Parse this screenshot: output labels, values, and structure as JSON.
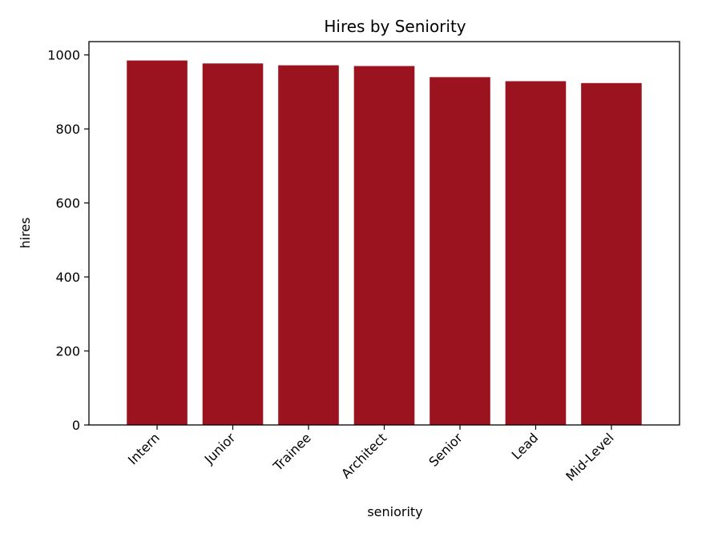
{
  "chart_data": {
    "type": "bar",
    "title": "Hires by Seniority",
    "xlabel": "seniority",
    "ylabel": "hires",
    "categories": [
      "Intern",
      "Junior",
      "Trainee",
      "Architect",
      "Senior",
      "Lead",
      "Mid-Level"
    ],
    "values": [
      985,
      977,
      972,
      970,
      940,
      929,
      924
    ],
    "ylim": [
      0,
      1036
    ],
    "yticks": [
      0,
      200,
      400,
      600,
      800,
      1000
    ],
    "ytick_labels": [
      "0",
      "200",
      "400",
      "600",
      "800",
      "1000"
    ],
    "bar_color": "#9a131f",
    "grid": false,
    "legend": "none"
  }
}
